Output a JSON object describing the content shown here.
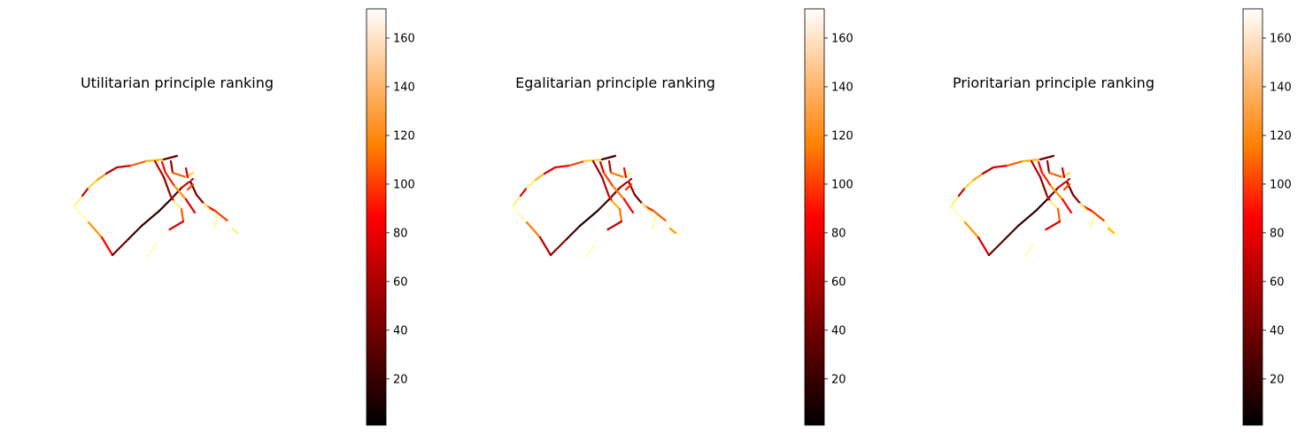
{
  "figure": {
    "panels": [
      {
        "title": "Utilitarian principle ranking"
      },
      {
        "title": "Egalitarian principle ranking"
      },
      {
        "title": "Prioritarian principle ranking"
      }
    ]
  },
  "chart_data": [
    {
      "type": "heatmap",
      "title": "Utilitarian principle ranking",
      "subtype": "road-network map colored by ranking",
      "axes_visible": false,
      "colormap": "gist_heat",
      "colorbar": {
        "range": [
          1,
          172
        ],
        "ticks": [
          20,
          40,
          60,
          80,
          100,
          120,
          140,
          160
        ],
        "position": "right"
      },
      "segment_ranks": [
        150,
        160,
        120,
        70,
        30,
        20,
        15,
        10,
        25,
        60,
        55,
        140,
        120,
        50,
        60,
        100,
        130,
        30,
        50,
        40,
        60,
        70,
        80,
        120,
        60,
        40,
        100,
        140,
        170,
        30,
        40,
        70,
        90,
        170,
        150,
        100,
        60,
        170,
        160,
        155,
        150,
        150,
        60,
        90
      ]
    },
    {
      "type": "heatmap",
      "title": "Egalitarian principle ranking",
      "subtype": "road-network map colored by ranking",
      "axes_visible": false,
      "colormap": "gist_heat",
      "colorbar": {
        "range": [
          1,
          172
        ],
        "ticks": [
          20,
          40,
          60,
          80,
          100,
          120,
          140,
          160
        ],
        "position": "right"
      },
      "segment_ranks": [
        150,
        160,
        110,
        50,
        40,
        20,
        10,
        15,
        30,
        50,
        60,
        150,
        130,
        60,
        70,
        90,
        140,
        20,
        40,
        50,
        70,
        60,
        90,
        110,
        70,
        50,
        110,
        150,
        170,
        40,
        30,
        80,
        100,
        165,
        130,
        110,
        50,
        170,
        160,
        155,
        150,
        120,
        70,
        80
      ]
    },
    {
      "type": "heatmap",
      "title": "Prioritarian principle ranking",
      "subtype": "road-network map colored by ranking",
      "axes_visible": false,
      "colormap": "gist_heat",
      "colorbar": {
        "range": [
          1,
          172
        ],
        "ticks": [
          20,
          40,
          60,
          80,
          100,
          120,
          140,
          160
        ],
        "position": "right"
      },
      "segment_ranks": [
        150,
        160,
        120,
        60,
        30,
        20,
        15,
        10,
        30,
        60,
        50,
        140,
        125,
        50,
        60,
        100,
        130,
        30,
        50,
        40,
        60,
        70,
        80,
        120,
        70,
        40,
        100,
        140,
        170,
        30,
        40,
        70,
        90,
        160,
        150,
        100,
        60,
        170,
        160,
        155,
        150,
        130,
        60,
        90
      ]
    }
  ]
}
